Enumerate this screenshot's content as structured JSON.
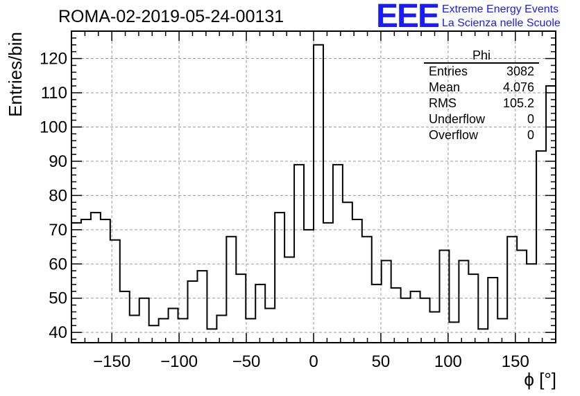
{
  "header": {
    "run_title": "ROMA-02-2019-05-24-00131",
    "logo": "EEE",
    "logo_line1": "Extreme Energy Events",
    "logo_line2": "La Scienza nelle Scuole"
  },
  "stats": {
    "title": "Phi",
    "rows": [
      {
        "key": "Entries",
        "value": "3082"
      },
      {
        "key": "Mean",
        "value": "4.076"
      },
      {
        "key": "RMS",
        "value": "105.2"
      },
      {
        "key": "Underflow",
        "value": "0"
      },
      {
        "key": "Overflow",
        "value": "0"
      }
    ]
  },
  "colors": {
    "line": "#000000",
    "grid": "#9a9a9a",
    "logo": "#1a1aff"
  },
  "chart_data": {
    "type": "histogram",
    "xlabel": "ϕ [°]",
    "ylabel": "Entries/bin",
    "xlim": [
      -180,
      180
    ],
    "ylim": [
      37,
      128
    ],
    "grid": true,
    "bin_width": 7.2,
    "bin_start": -180,
    "values": [
      72,
      73,
      75,
      73,
      67,
      52,
      45,
      50,
      42,
      44,
      47,
      44,
      55,
      58,
      41,
      45,
      68,
      57,
      44,
      54,
      47,
      75,
      62,
      89,
      70,
      124,
      72,
      89,
      78,
      73,
      68,
      54,
      61,
      53,
      50,
      52,
      50,
      46,
      64,
      43,
      61,
      57,
      41,
      56,
      44,
      68,
      64,
      60,
      93,
      112
    ],
    "x_ticks": [
      -150,
      -100,
      -50,
      0,
      50,
      100,
      150
    ],
    "x_tick_labels": [
      "−150",
      "−100",
      "−50",
      "0",
      "50",
      "100",
      "150"
    ],
    "y_ticks": [
      40,
      50,
      60,
      70,
      80,
      90,
      100,
      110,
      120
    ],
    "y_tick_labels": [
      "40",
      "50",
      "60",
      "70",
      "80",
      "90",
      "100",
      "110",
      "120"
    ]
  }
}
